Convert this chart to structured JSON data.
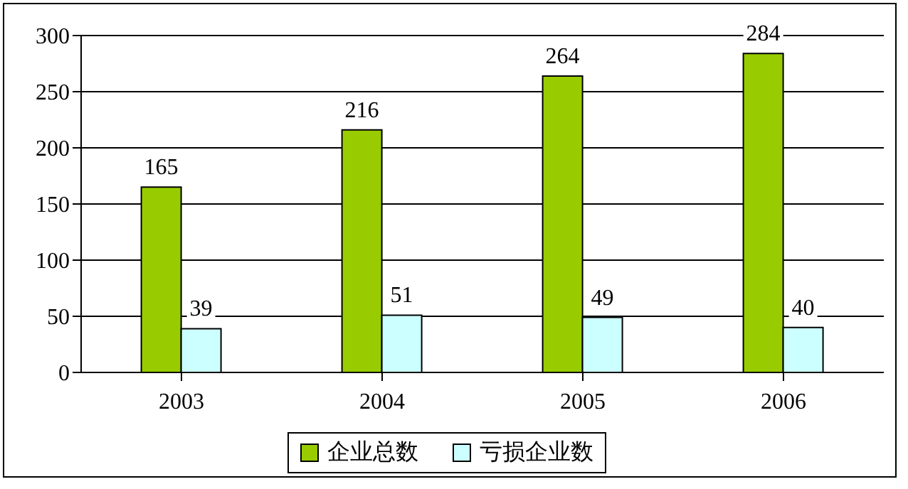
{
  "chart_data": {
    "type": "bar",
    "categories": [
      "2003",
      "2004",
      "2005",
      "2006"
    ],
    "series": [
      {
        "name": "企业总数",
        "color": "#99cc00",
        "values": [
          165,
          216,
          264,
          284
        ]
      },
      {
        "name": "亏损企业数",
        "color": "#ccffff",
        "values": [
          39,
          51,
          49,
          40
        ]
      }
    ],
    "ylim": [
      0,
      300
    ],
    "yticks": [
      0,
      50,
      100,
      150,
      200,
      250,
      300
    ],
    "grid": "y",
    "legend": "bottom",
    "data_labels": true
  }
}
